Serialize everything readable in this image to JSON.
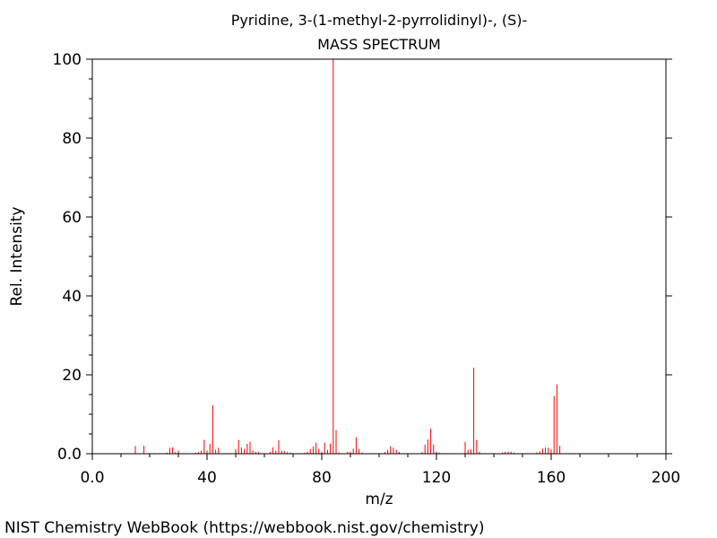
{
  "chart_data": {
    "type": "bar",
    "title": "Pyridine, 3-(1-methyl-2-pyrrolidinyl)-, (S)-",
    "subtitle": "MASS SPECTRUM",
    "xlabel": "m/z",
    "ylabel": "Rel. Intensity",
    "xlim": [
      0,
      200
    ],
    "ylim": [
      0,
      100
    ],
    "xticks": [
      "0.0",
      "40",
      "80",
      "120",
      "160",
      "200"
    ],
    "yticks": [
      "0.0",
      "20",
      "40",
      "60",
      "80",
      "100"
    ],
    "grid": false,
    "bar_color": "#ff0000",
    "series": [
      {
        "x": [
          15,
          18,
          26,
          27,
          28,
          29,
          30,
          36,
          37,
          38,
          39,
          40,
          41,
          42,
          43,
          44,
          50,
          51,
          52,
          53,
          54,
          55,
          56,
          57,
          58,
          62,
          63,
          64,
          65,
          66,
          67,
          68,
          69,
          74,
          75,
          76,
          77,
          78,
          79,
          80,
          81,
          82,
          83,
          84,
          85,
          86,
          89,
          90,
          91,
          92,
          93,
          94,
          102,
          103,
          104,
          105,
          106,
          107,
          115,
          116,
          117,
          118,
          119,
          120,
          121,
          130,
          131,
          132,
          133,
          134,
          135,
          143,
          144,
          145,
          146,
          147,
          155,
          156,
          157,
          158,
          159,
          160,
          161,
          162,
          163
        ],
        "values": [
          2.0,
          2.0,
          0.3,
          1.5,
          1.6,
          0.4,
          0.8,
          0.3,
          0.4,
          0.8,
          3.5,
          0.8,
          2.5,
          12.3,
          1.0,
          1.5,
          1.2,
          3.5,
          1.6,
          1.2,
          2.5,
          3.0,
          0.8,
          0.5,
          0.4,
          0.5,
          1.6,
          0.8,
          3.4,
          0.8,
          0.6,
          0.4,
          0.3,
          0.3,
          0.5,
          1.2,
          1.8,
          2.8,
          1.3,
          0.5,
          2.8,
          1.0,
          2.6,
          100.0,
          6.0,
          0.3,
          0.5,
          0.5,
          1.3,
          4.2,
          1.2,
          0.3,
          0.4,
          1.0,
          1.9,
          1.5,
          1.0,
          0.5,
          0.4,
          2.3,
          3.6,
          6.3,
          2.3,
          0.5,
          0.3,
          3.0,
          1.0,
          1.1,
          21.8,
          3.5,
          0.5,
          0.3,
          0.5,
          0.5,
          0.5,
          0.3,
          0.3,
          0.6,
          1.3,
          1.6,
          1.5,
          1.1,
          14.6,
          17.6,
          2.0
        ]
      }
    ]
  },
  "footer": {
    "credit": "NIST Chemistry WebBook (https://webbook.nist.gov/chemistry)"
  }
}
